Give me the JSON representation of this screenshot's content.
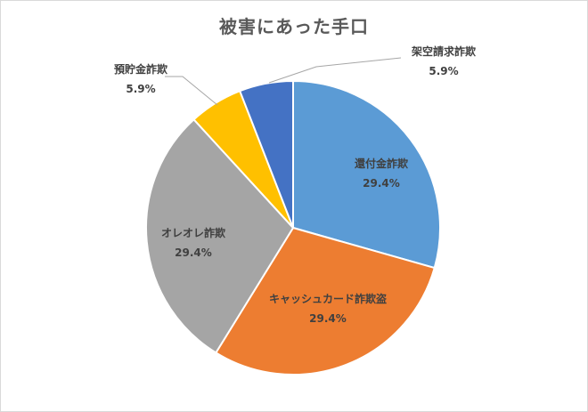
{
  "chart_data": {
    "type": "pie",
    "title": "被害にあった手口",
    "categories": [
      "還付金詐欺",
      "キャッシュカード詐欺盗",
      "オレオレ詐欺",
      "預貯金詐欺",
      "架空請求詐欺"
    ],
    "values": [
      29.4,
      29.4,
      29.4,
      5.9,
      5.9
    ],
    "value_labels": [
      "29.4%",
      "29.4%",
      "29.4%",
      "5.9%",
      "5.9%"
    ],
    "colors": [
      "#5b9bd5",
      "#ed7d31",
      "#a5a5a5",
      "#ffc000",
      "#4472c4"
    ],
    "start_angle_deg": 0,
    "direction": "clockwise",
    "legend": "none"
  }
}
